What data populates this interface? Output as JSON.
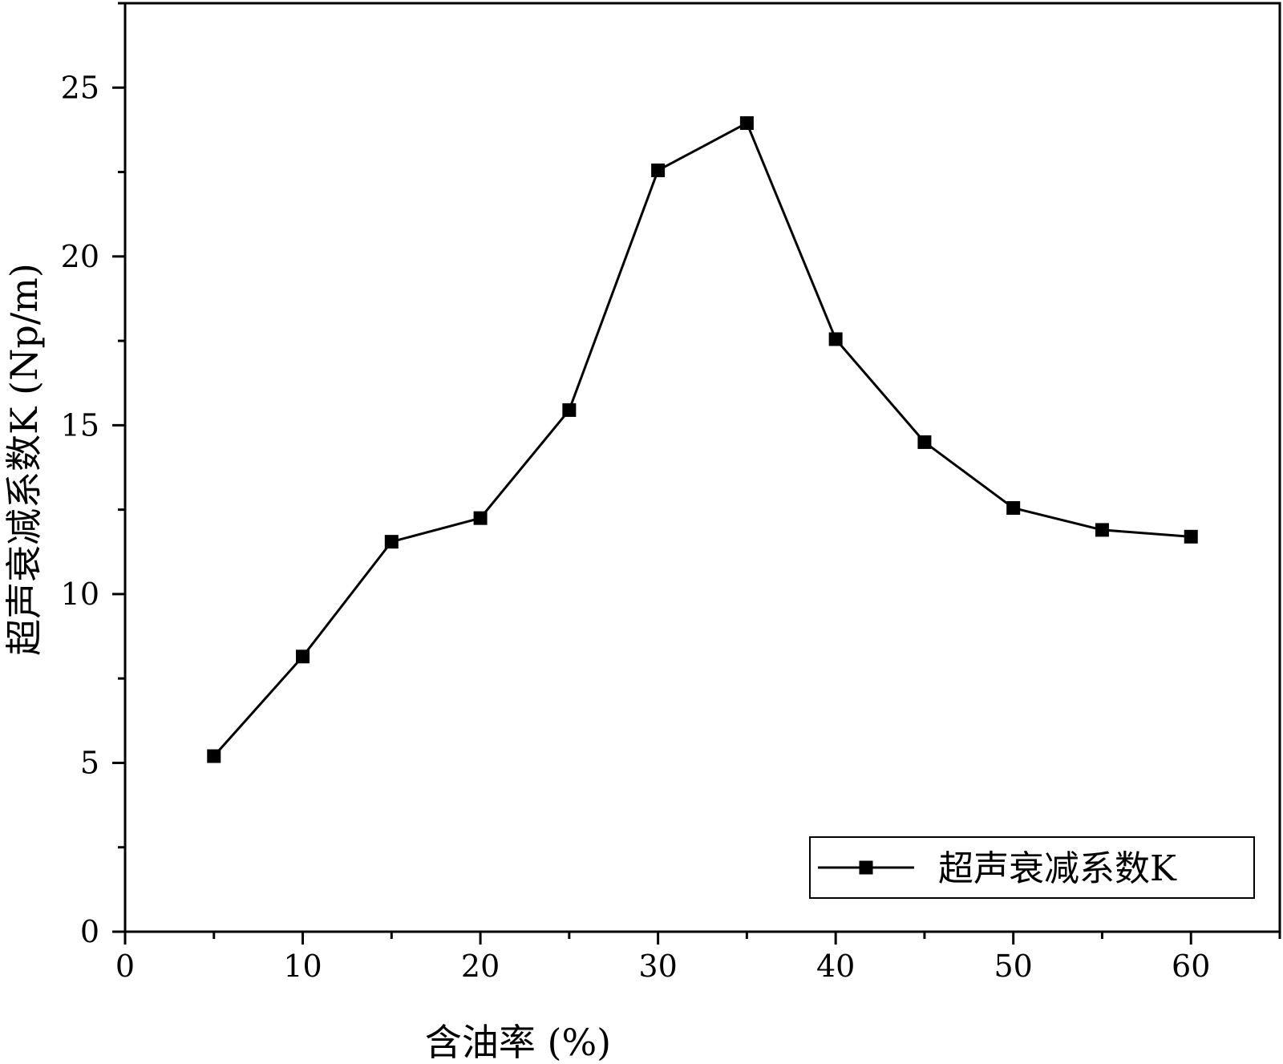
{
  "chart_data": {
    "type": "line",
    "title": "",
    "xlabel": "含油率 (%)",
    "ylabel": "超声衰减系数K (Np/m)",
    "xlim": [
      0,
      65
    ],
    "ylim": [
      0,
      27.5
    ],
    "xticks": [
      0,
      10,
      20,
      30,
      40,
      50,
      60
    ],
    "yticks": [
      0,
      5,
      10,
      15,
      20,
      25
    ],
    "x": [
      5,
      10,
      15,
      20,
      25,
      30,
      35,
      40,
      45,
      50,
      55,
      60
    ],
    "series": [
      {
        "name": "超声衰减系数K",
        "marker": "square",
        "color": "#000000",
        "values": [
          5.2,
          8.15,
          11.55,
          12.25,
          15.45,
          22.55,
          23.95,
          17.55,
          14.5,
          12.55,
          11.9,
          11.7
        ]
      }
    ],
    "legend": {
      "position": "bottom-right",
      "entries": [
        "超声衰减系数K"
      ]
    },
    "grid": false
  }
}
